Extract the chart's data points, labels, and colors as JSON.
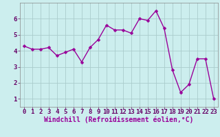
{
  "x": [
    0,
    1,
    2,
    3,
    4,
    5,
    6,
    7,
    8,
    9,
    10,
    11,
    12,
    13,
    14,
    15,
    16,
    17,
    18,
    19,
    20,
    21,
    22,
    23
  ],
  "y": [
    4.3,
    4.1,
    4.1,
    4.2,
    3.7,
    3.9,
    4.1,
    3.3,
    4.2,
    4.7,
    5.6,
    5.3,
    5.3,
    5.1,
    6.0,
    5.9,
    6.5,
    5.4,
    2.8,
    1.4,
    1.9,
    3.5,
    3.5,
    1.0
  ],
  "line_color": "#990099",
  "marker": "D",
  "marker_size": 2.5,
  "line_width": 1.0,
  "bg_color": "#cceeee",
  "grid_color": "#aacccc",
  "xlabel": "Windchill (Refroidissement éolien,°C)",
  "xlim": [
    -0.5,
    23.5
  ],
  "ylim": [
    0.5,
    7.0
  ],
  "yticks": [
    1,
    2,
    3,
    4,
    5,
    6
  ],
  "xticks": [
    0,
    1,
    2,
    3,
    4,
    5,
    6,
    7,
    8,
    9,
    10,
    11,
    12,
    13,
    14,
    15,
    16,
    17,
    18,
    19,
    20,
    21,
    22,
    23
  ],
  "tick_label_size": 6.5,
  "xlabel_size": 7.0,
  "xlabel_color": "#990099",
  "tick_color": "#660066"
}
